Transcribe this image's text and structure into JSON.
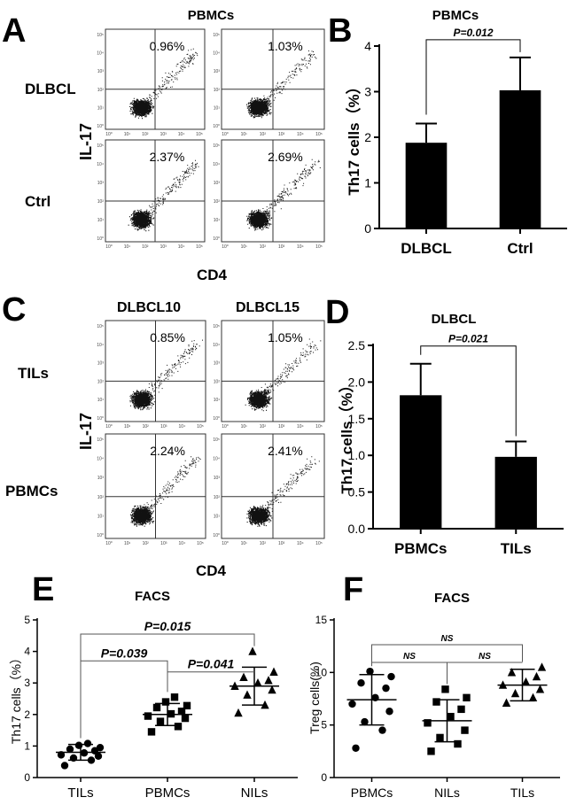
{
  "panels": {
    "A": {
      "letter": "A",
      "title": "PBMCs",
      "row_labels": [
        "DLBCL",
        "Ctrl"
      ],
      "y_label": "IL-17",
      "x_label": "CD4",
      "percents": [
        "0.96%",
        "1.03%",
        "2.37%",
        "2.69%"
      ],
      "tick_labels": [
        "10⁰",
        "10¹",
        "10²",
        "10³",
        "10⁴",
        "10⁵"
      ]
    },
    "C": {
      "letter": "C",
      "col_titles": [
        "DLBCL10",
        "DLBCL15"
      ],
      "row_labels": [
        "TILs",
        "PBMCs"
      ],
      "y_label": "IL-17",
      "x_label": "CD4",
      "percents": [
        "0.85%",
        "1.05%",
        "2.24%",
        "2.41%"
      ]
    }
  },
  "chart_data": [
    {
      "id": "B",
      "type": "bar",
      "letter": "B",
      "title": "PBMCs",
      "categories": [
        "DLBCL",
        "Ctrl"
      ],
      "values": [
        1.88,
        3.03
      ],
      "errors": [
        0.42,
        0.72
      ],
      "ylabel": "Th17 cells（%）",
      "xlabel": "",
      "ylim": [
        0,
        4
      ],
      "yticks": [
        "0",
        "1",
        "2",
        "3",
        "4"
      ],
      "comparisons": [
        {
          "from": 0,
          "to": 1,
          "label": "P=0.012"
        }
      ]
    },
    {
      "id": "D",
      "type": "bar",
      "letter": "D",
      "title": "DLBCL",
      "categories": [
        "PBMCs",
        "TILs"
      ],
      "values": [
        1.82,
        0.98
      ],
      "errors": [
        0.43,
        0.21
      ],
      "ylabel": "Th17 cells（%）",
      "xlabel": "",
      "ylim": [
        0,
        2.5
      ],
      "yticks": [
        "0.0",
        "0.5",
        "1.0",
        "1.5",
        "2.0",
        "2.5"
      ],
      "comparisons": [
        {
          "from": 0,
          "to": 1,
          "label": "P=0.021"
        }
      ]
    },
    {
      "id": "E",
      "type": "scatter",
      "letter": "E",
      "title": "FACS",
      "categories": [
        "TILs",
        "PBMCs",
        "NILs"
      ],
      "markers": [
        "circle",
        "square",
        "triangle"
      ],
      "series": [
        {
          "name": "TILs",
          "values": [
            0.38,
            0.55,
            0.62,
            0.68,
            0.72,
            0.78,
            0.85,
            0.9,
            0.95,
            1.02,
            1.08
          ],
          "mean": 0.8,
          "sd": 0.25
        },
        {
          "name": "PBMCs",
          "values": [
            1.45,
            1.62,
            1.78,
            1.88,
            1.95,
            2.02,
            2.1,
            2.22,
            2.28,
            2.4,
            2.55
          ],
          "mean": 2.0,
          "sd": 0.35
        },
        {
          "name": "NILs",
          "values": [
            2.05,
            2.3,
            2.62,
            2.78,
            2.9,
            3.0,
            3.08,
            3.18,
            3.35,
            4.0
          ],
          "mean": 2.9,
          "sd": 0.6
        }
      ],
      "ylabel": "Th17 cells（%）",
      "ylim": [
        0,
        5
      ],
      "yticks": [
        "0",
        "1",
        "2",
        "3",
        "4",
        "5"
      ],
      "comparisons": [
        {
          "from": 0,
          "to": 1,
          "label": "P=0.039",
          "level": 1
        },
        {
          "from": 1,
          "to": 2,
          "label": "P=0.041",
          "level": 1
        },
        {
          "from": 0,
          "to": 2,
          "label": "P=0.015",
          "level": 2
        }
      ]
    },
    {
      "id": "F",
      "type": "scatter",
      "letter": "F",
      "title": "FACS",
      "categories": [
        "PBMCs",
        "NILs",
        "TILs"
      ],
      "markers": [
        "circle",
        "square",
        "triangle"
      ],
      "series": [
        {
          "name": "PBMCs",
          "values": [
            2.8,
            4.5,
            5.3,
            6.3,
            7.0,
            7.6,
            8.5,
            9.0,
            9.6,
            10.1
          ],
          "mean": 7.4,
          "sd": 2.4
        },
        {
          "name": "NILs",
          "values": [
            2.5,
            3.2,
            3.8,
            4.5,
            5.2,
            5.8,
            6.5,
            7.2,
            7.6,
            8.4
          ],
          "mean": 5.4,
          "sd": 2.0
        },
        {
          "name": "TILs",
          "values": [
            7.1,
            7.6,
            8.0,
            8.4,
            8.8,
            9.1,
            9.6,
            10.0,
            10.5
          ],
          "mean": 8.8,
          "sd": 1.5
        }
      ],
      "ylabel": "Treg cells(%)",
      "ylim": [
        0,
        15
      ],
      "yticks": [
        "0",
        "5",
        "10",
        "15"
      ],
      "comparisons": [
        {
          "from": 0,
          "to": 1,
          "label": "NS",
          "level": 1
        },
        {
          "from": 1,
          "to": 2,
          "label": "NS",
          "level": 1
        },
        {
          "from": 0,
          "to": 2,
          "label": "NS",
          "level": 2
        }
      ]
    }
  ]
}
